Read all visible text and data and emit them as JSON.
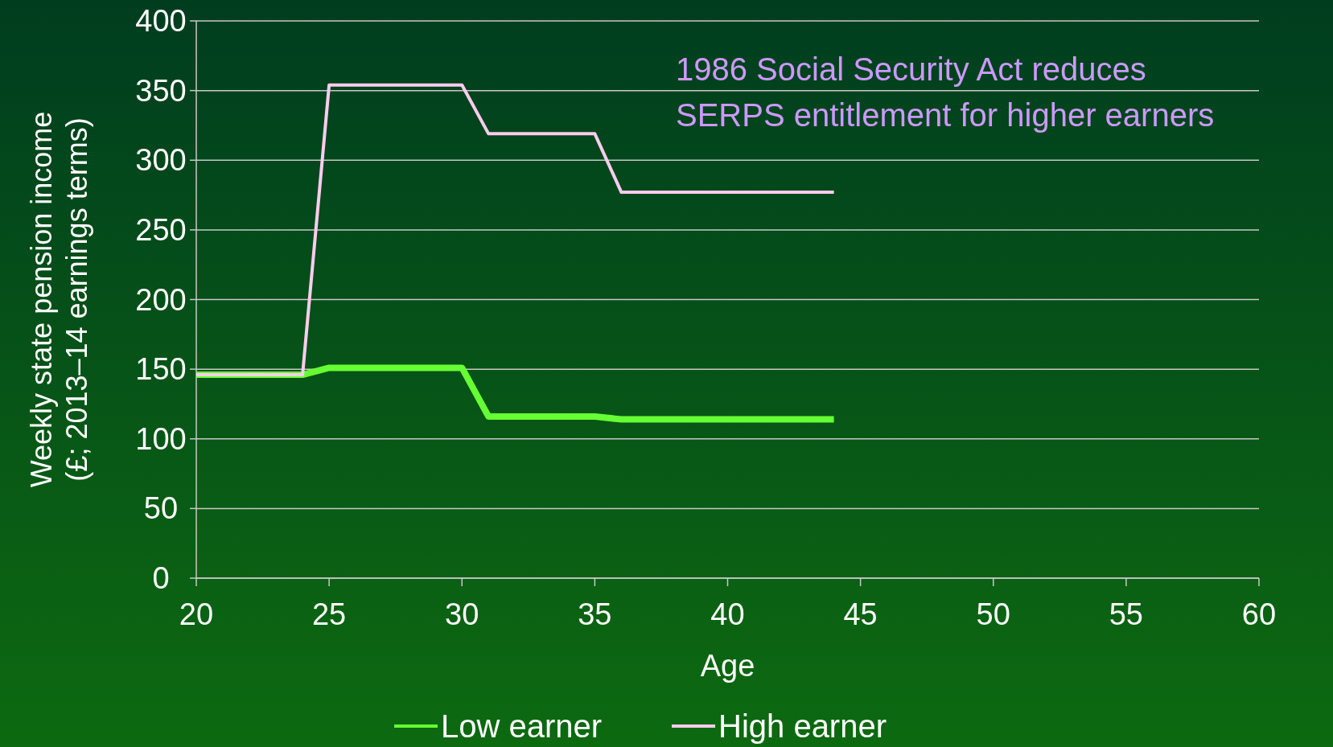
{
  "chart_data": {
    "type": "line",
    "xlabel": "Age",
    "ylabel": "Weekly state pension income\n(£; 2013–14 earnings terms)",
    "annotations": [
      "1986 Social Security Act reduces\nSERPS entitlement for higher earners"
    ],
    "x": [
      20,
      24,
      25,
      30,
      31,
      35,
      36,
      44
    ],
    "series": [
      {
        "name": "Low earner",
        "color": "#66ff33",
        "values": [
          146,
          146,
          151,
          151,
          116,
          116,
          114,
          114
        ]
      },
      {
        "name": "High earner",
        "color": "#ffccee",
        "values": [
          146,
          146,
          354,
          354,
          319,
          319,
          277,
          277
        ]
      }
    ],
    "xlim": [
      20,
      60
    ],
    "xticks": [
      20,
      25,
      30,
      35,
      40,
      45,
      50,
      55,
      60
    ],
    "ylim": [
      0,
      400
    ],
    "yticks": [
      0,
      50,
      100,
      150,
      200,
      250,
      300,
      350,
      400
    ],
    "grid": "y",
    "legend": "bottom",
    "marker": "none",
    "line_style": "solid"
  }
}
